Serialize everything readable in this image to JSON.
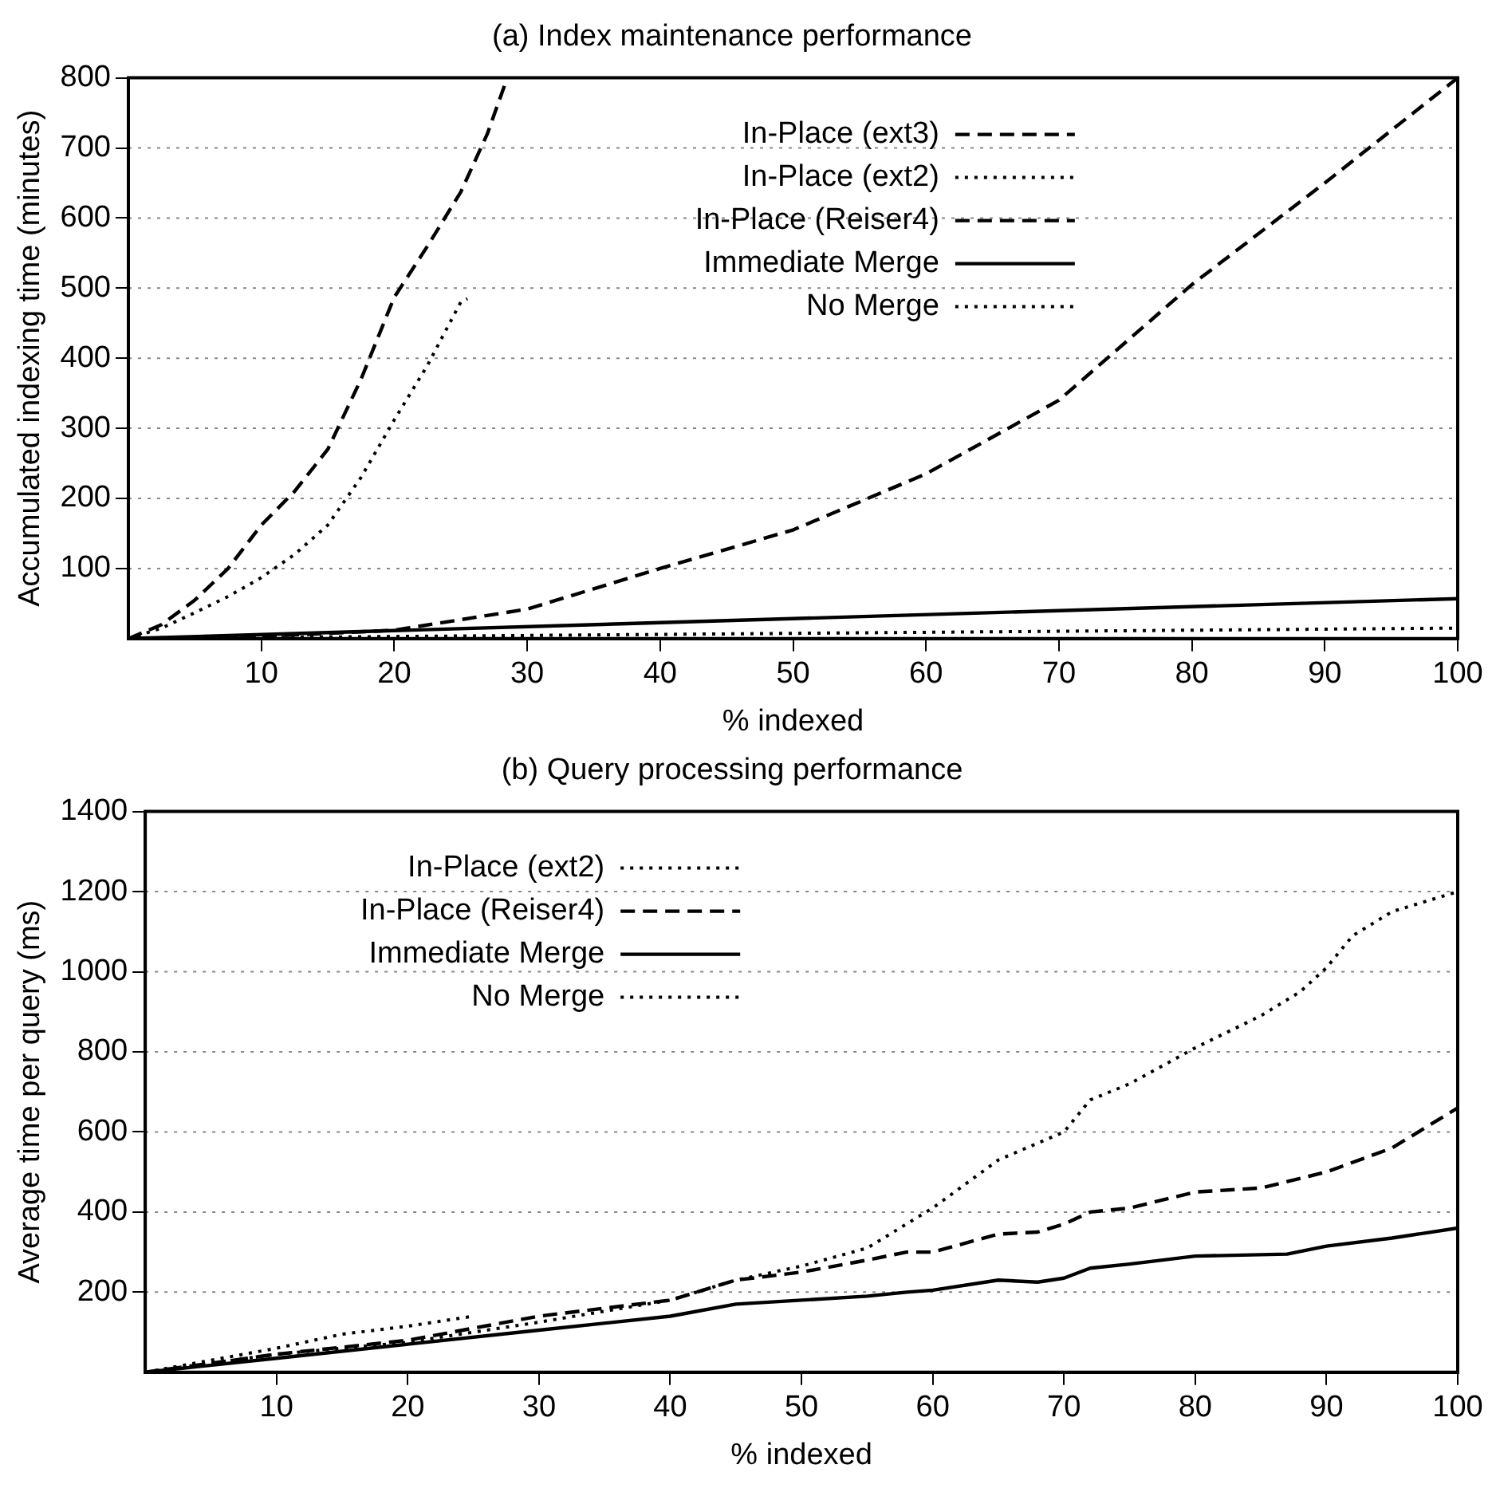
{
  "chart_data": [
    {
      "type": "line",
      "title": "(a) Index maintenance performance",
      "xlabel": "% indexed",
      "ylabel": "Accumulated indexing time (minutes)",
      "xlim": [
        0,
        100
      ],
      "xticks": [
        10,
        20,
        30,
        40,
        50,
        60,
        70,
        80,
        90,
        100
      ],
      "ylim": [
        0,
        800
      ],
      "yticks": [
        100,
        200,
        300,
        400,
        500,
        600,
        700,
        800
      ],
      "grid": "y",
      "legend": "top",
      "marker": "none",
      "series": [
        {
          "name": "In-Place (ext3)",
          "color": "#000000",
          "line_style": "dashed",
          "x": [
            0,
            2.5,
            5,
            7.5,
            10,
            12.5,
            15,
            17.5,
            20,
            22.5,
            25,
            27,
            28.5
          ],
          "values": [
            0,
            20,
            55,
            100,
            162,
            210,
            270,
            370,
            487,
            560,
            637,
            720,
            800
          ]
        },
        {
          "name": "In-Place (ext2)",
          "color": "#000000",
          "line_style": "dotted",
          "x": [
            0,
            2.5,
            5,
            7.5,
            10,
            12.5,
            15,
            17.5,
            20,
            22.5,
            25,
            25.5
          ],
          "values": [
            0,
            15,
            37,
            60,
            87,
            120,
            162,
            230,
            312,
            390,
            480,
            485
          ]
        },
        {
          "name": "In-Place (Reiser4)",
          "color": "#000000",
          "line_style": "dashed",
          "x": [
            0,
            10,
            20,
            30,
            40,
            50,
            60,
            70,
            80,
            90,
            100
          ],
          "values": [
            0,
            3,
            12,
            42,
            100,
            155,
            235,
            340,
            505,
            650,
            800
          ]
        },
        {
          "name": "Immediate Merge",
          "color": "#000000",
          "line_style": "solid",
          "x": [
            0,
            100
          ],
          "values": [
            0,
            57
          ]
        },
        {
          "name": "No Merge",
          "color": "#000000",
          "line_style": "dotted",
          "x": [
            0,
            100
          ],
          "values": [
            0,
            15
          ]
        }
      ]
    },
    {
      "type": "line",
      "title": "(b) Query processing performance",
      "xlabel": "% indexed",
      "ylabel": "Average time per query (ms)",
      "xlim": [
        0,
        100
      ],
      "xticks": [
        10,
        20,
        30,
        40,
        50,
        60,
        70,
        80,
        90,
        100
      ],
      "ylim": [
        0,
        1400
      ],
      "yticks": [
        200,
        400,
        600,
        800,
        1000,
        1200,
        1400
      ],
      "grid": "y",
      "legend": "top left",
      "marker": "none",
      "series": [
        {
          "name": "In-Place (ext2)",
          "color": "#000000",
          "line_style": "dotted",
          "x": [
            0,
            5,
            10,
            15,
            20,
            25
          ],
          "values": [
            0,
            30,
            60,
            95,
            115,
            140
          ]
        },
        {
          "name": "In-Place (Reiser4)",
          "color": "#000000",
          "line_style": "dashed",
          "x": [
            0,
            10,
            20,
            30,
            40,
            45,
            50,
            55,
            58,
            60,
            65,
            68,
            70,
            72,
            75,
            80,
            85,
            90,
            95,
            100
          ],
          "values": [
            0,
            45,
            80,
            140,
            180,
            230,
            250,
            280,
            300,
            300,
            345,
            350,
            370,
            400,
            410,
            450,
            460,
            500,
            560,
            660
          ]
        },
        {
          "name": "Immediate Merge",
          "color": "#000000",
          "line_style": "solid",
          "x": [
            0,
            10,
            20,
            30,
            40,
            45,
            50,
            55,
            58,
            60,
            65,
            68,
            70,
            72,
            75,
            80,
            87,
            90,
            95,
            100
          ],
          "values": [
            0,
            35,
            70,
            105,
            140,
            170,
            180,
            190,
            200,
            205,
            230,
            225,
            235,
            260,
            270,
            290,
            295,
            315,
            335,
            360
          ]
        },
        {
          "name": "No Merge",
          "color": "#000000",
          "line_style": "dotted",
          "x": [
            0,
            10,
            20,
            30,
            40,
            45,
            50,
            55,
            60,
            65,
            70,
            72,
            75,
            80,
            85,
            88,
            90,
            92,
            95,
            100
          ],
          "values": [
            0,
            45,
            75,
            125,
            180,
            230,
            265,
            310,
            410,
            530,
            600,
            680,
            720,
            810,
            890,
            950,
            1010,
            1090,
            1150,
            1200
          ]
        }
      ]
    }
  ]
}
